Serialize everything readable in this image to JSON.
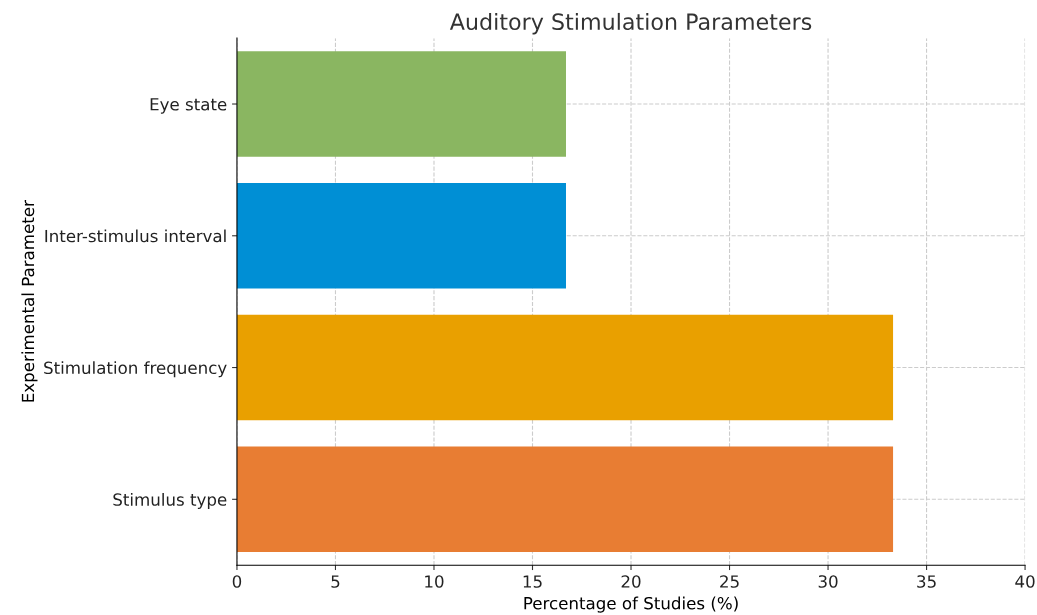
{
  "chart_data": {
    "type": "bar",
    "orientation": "horizontal",
    "title": "Auditory Stimulation Parameters",
    "xlabel": "Percentage of Studies (%)",
    "ylabel": "Experimental Parameter",
    "categories": [
      "Eye state",
      "Inter-stimulus interval",
      "Stimulation frequency",
      "Stimulus type"
    ],
    "values": [
      16.7,
      16.7,
      33.3,
      33.3
    ],
    "colors": [
      "#8ab661",
      "#008fd5",
      "#e9a000",
      "#e87d33"
    ],
    "xlim": [
      0,
      40
    ],
    "xticks": [
      0,
      5,
      10,
      15,
      20,
      25,
      30,
      35,
      40
    ],
    "grid": true
  }
}
